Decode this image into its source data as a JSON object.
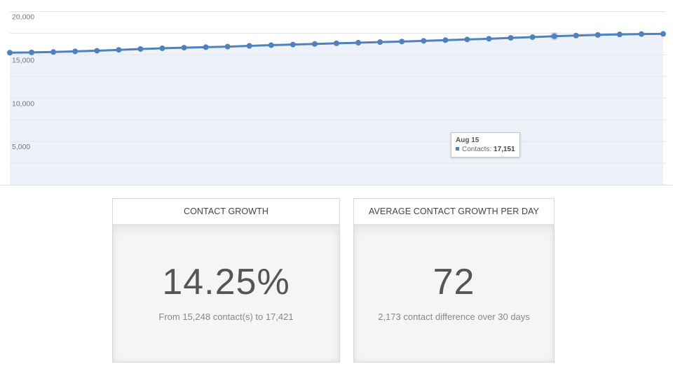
{
  "chart_data": {
    "type": "area",
    "y_ticks": [
      "20,000",
      "15,000",
      "10,000",
      "5,000"
    ],
    "ylim": [
      0,
      20000
    ],
    "grid": true,
    "series": [
      {
        "values": [
          15248,
          15280,
          15330,
          15400,
          15480,
          15580,
          15680,
          15760,
          15830,
          15890,
          15950,
          16040,
          16120,
          16190,
          16260,
          16330,
          16400,
          16470,
          16540,
          16620,
          16700,
          16780,
          16860,
          16960,
          17050,
          17151,
          17230,
          17300,
          17360,
          17400,
          17421
        ]
      }
    ],
    "colors": {
      "line": "#4f81bd",
      "fill": "#edf2fa",
      "grid": "#e6e6e6"
    },
    "highlight_index": 25
  },
  "tooltip": {
    "date": "Aug 15",
    "series_label": "Contacts: ",
    "value": "17,151"
  },
  "cards": {
    "growth": {
      "title": "CONTACT GROWTH",
      "value": "14.25%",
      "subtitle": "From 15,248 contact(s) to 17,421"
    },
    "avg": {
      "title": "AVERAGE CONTACT GROWTH PER DAY",
      "value": "72",
      "subtitle": "2,173 contact difference over 30 days"
    }
  }
}
